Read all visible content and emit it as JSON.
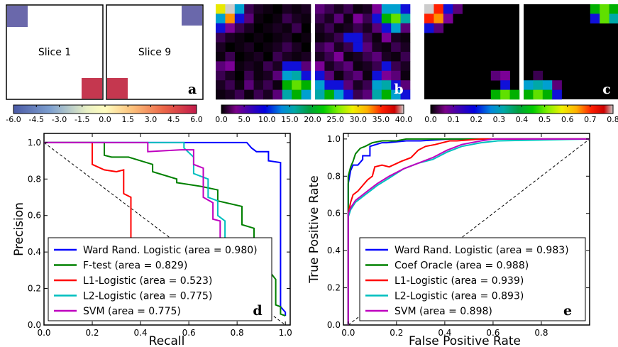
{
  "top_panels": {
    "a": {
      "letter": "a",
      "slices": [
        "Slice 1",
        "Slice 9"
      ],
      "colorbar_ticks": [
        "-6.0",
        "-4.5",
        "-3.0",
        "-1.5",
        "0.0",
        "1.5",
        "3.0",
        "4.5",
        "6.0"
      ],
      "colorbar_range": [
        -6,
        6
      ]
    },
    "b": {
      "letter": "b",
      "colorbar_ticks": [
        "0.0",
        "5.0",
        "10.0",
        "15.0",
        "20.0",
        "25.0",
        "30.0",
        "35.0",
        "40.0"
      ],
      "colorbar_range": [
        0,
        40
      ]
    },
    "c": {
      "letter": "c",
      "colorbar_ticks": [
        "0.0",
        "0.1",
        "0.2",
        "0.3",
        "0.4",
        "0.5",
        "0.6",
        "0.7",
        "0.8"
      ],
      "colorbar_range": [
        0,
        0.8
      ]
    }
  },
  "chart_data": [
    {
      "panel": "d",
      "type": "line",
      "xlabel": "Recall",
      "ylabel": "Precision",
      "xlim": [
        0,
        1.02
      ],
      "ylim": [
        0,
        1.05
      ],
      "xticks": [
        "0.0",
        "0.2",
        "0.4",
        "0.6",
        "0.8",
        "1.0"
      ],
      "yticks": [
        "0.0",
        "0.2",
        "0.4",
        "0.6",
        "0.8",
        "1.0"
      ],
      "legend_position": "lower-left",
      "chance_line": [
        [
          0,
          1
        ],
        [
          1,
          0
        ]
      ],
      "series": [
        {
          "name": "Ward Rand. Logistic (area = 0.980)",
          "color": "#0000ff",
          "x": [
            0.0,
            0.84,
            0.86,
            0.88,
            0.93,
            0.93,
            0.98,
            0.98,
            1.0,
            1.0
          ],
          "y": [
            1.0,
            1.0,
            0.97,
            0.95,
            0.95,
            0.9,
            0.89,
            0.1,
            0.07,
            0.05
          ]
        },
        {
          "name": "F-test (area = 0.829)",
          "color": "#008000",
          "x": [
            0.0,
            0.25,
            0.25,
            0.28,
            0.35,
            0.45,
            0.45,
            0.55,
            0.55,
            0.65,
            0.72,
            0.72,
            0.82,
            0.82,
            0.87,
            0.87,
            0.93,
            0.93,
            0.96,
            0.96,
            0.98,
            0.98,
            1.0
          ],
          "y": [
            1.0,
            1.0,
            0.93,
            0.92,
            0.92,
            0.88,
            0.84,
            0.8,
            0.78,
            0.76,
            0.74,
            0.68,
            0.65,
            0.55,
            0.53,
            0.45,
            0.38,
            0.3,
            0.25,
            0.11,
            0.1,
            0.06,
            0.05
          ]
        },
        {
          "name": "L1-Logistic (area = 0.523)",
          "color": "#ff0000",
          "x": [
            0.0,
            0.2,
            0.2,
            0.25,
            0.3,
            0.33,
            0.33,
            0.36,
            0.36,
            0.39
          ],
          "y": [
            1.0,
            1.0,
            0.88,
            0.85,
            0.84,
            0.85,
            0.72,
            0.7,
            0.42,
            0.39
          ]
        },
        {
          "name": "L2-Logistic (area = 0.775)",
          "color": "#00bfbf",
          "x": [
            0.0,
            0.58,
            0.58,
            0.62,
            0.62,
            0.68,
            0.68,
            0.72,
            0.72,
            0.75,
            0.75
          ],
          "y": [
            1.0,
            1.0,
            0.97,
            0.92,
            0.83,
            0.8,
            0.7,
            0.68,
            0.6,
            0.57,
            0.47
          ]
        },
        {
          "name": "SVM (area = 0.775)",
          "color": "#bf00bf",
          "x": [
            0.0,
            0.43,
            0.43,
            0.57,
            0.62,
            0.62,
            0.66,
            0.66,
            0.7,
            0.7,
            0.73,
            0.73,
            0.76
          ],
          "y": [
            1.0,
            1.0,
            0.95,
            0.96,
            0.96,
            0.88,
            0.86,
            0.7,
            0.67,
            0.58,
            0.57,
            0.47,
            0.47
          ]
        }
      ]
    },
    {
      "panel": "e",
      "type": "line",
      "xlabel": "False Positive Rate",
      "ylabel": "True Positive Rate",
      "xlim": [
        -0.02,
        1.0
      ],
      "ylim": [
        0,
        1.03
      ],
      "xticks": [
        "0.0",
        "0.2",
        "0.4",
        "0.6",
        "0.8"
      ],
      "yticks": [
        "0.0",
        "0.2",
        "0.4",
        "0.6",
        "0.8",
        "1.0"
      ],
      "legend_position": "lower-right",
      "chance_line": [
        [
          0,
          0
        ],
        [
          1,
          1
        ]
      ],
      "series": [
        {
          "name": "Ward Rand. Logistic (area = 0.983)",
          "color": "#0000ff",
          "x": [
            0.0,
            0.0,
            0.01,
            0.02,
            0.04,
            0.06,
            0.06,
            0.09,
            0.09,
            0.14,
            0.16,
            0.24,
            0.3,
            0.42,
            1.0
          ],
          "y": [
            0.0,
            0.76,
            0.83,
            0.86,
            0.86,
            0.89,
            0.91,
            0.91,
            0.96,
            0.98,
            0.98,
            0.99,
            0.99,
            1.0,
            1.0
          ]
        },
        {
          "name": "Coef Oracle (area = 0.988)",
          "color": "#008000",
          "x": [
            0.0,
            0.0,
            0.01,
            0.02,
            0.03,
            0.05,
            0.07,
            0.1,
            0.14,
            0.2,
            0.24,
            0.36,
            1.0
          ],
          "y": [
            0.0,
            0.8,
            0.85,
            0.88,
            0.92,
            0.95,
            0.96,
            0.98,
            0.99,
            0.99,
            1.0,
            1.0,
            1.0
          ]
        },
        {
          "name": "L1-Logistic (area = 0.939)",
          "color": "#ff0000",
          "x": [
            0.0,
            0.0,
            0.01,
            0.02,
            0.04,
            0.06,
            0.08,
            0.1,
            0.11,
            0.14,
            0.17,
            0.22,
            0.26,
            0.29,
            0.32,
            0.36,
            0.42,
            0.45,
            0.55,
            0.65,
            1.0
          ],
          "y": [
            0.0,
            0.6,
            0.66,
            0.7,
            0.72,
            0.75,
            0.78,
            0.8,
            0.85,
            0.86,
            0.85,
            0.88,
            0.9,
            0.94,
            0.96,
            0.97,
            0.99,
            0.99,
            1.0,
            1.0,
            1.0
          ]
        },
        {
          "name": "L2-Logistic (area = 0.893)",
          "color": "#00bfbf",
          "x": [
            0.0,
            0.0,
            0.01,
            0.03,
            0.06,
            0.09,
            0.12,
            0.17,
            0.23,
            0.29,
            0.35,
            0.41,
            0.47,
            0.55,
            0.62,
            1.0
          ],
          "y": [
            0.0,
            0.58,
            0.62,
            0.66,
            0.69,
            0.72,
            0.75,
            0.79,
            0.84,
            0.87,
            0.89,
            0.93,
            0.96,
            0.98,
            0.99,
            1.0
          ]
        },
        {
          "name": "SVM (area = 0.898)",
          "color": "#bf00bf",
          "x": [
            0.0,
            0.0,
            0.01,
            0.03,
            0.06,
            0.09,
            0.12,
            0.17,
            0.23,
            0.29,
            0.35,
            0.41,
            0.47,
            0.55,
            0.6,
            1.0
          ],
          "y": [
            0.0,
            0.6,
            0.63,
            0.67,
            0.7,
            0.73,
            0.76,
            0.8,
            0.84,
            0.87,
            0.9,
            0.94,
            0.97,
            0.99,
            1.0,
            1.0
          ]
        }
      ]
    }
  ]
}
